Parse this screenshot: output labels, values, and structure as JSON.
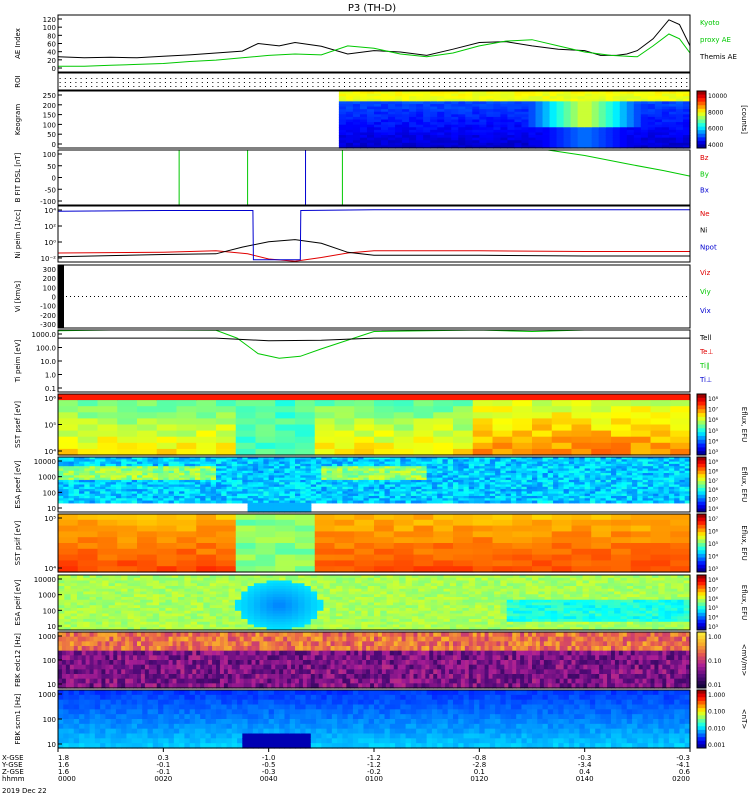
{
  "title": "P3 (TH-D)",
  "date_label": "2019 Dec 22",
  "footer": {
    "row_labels": [
      "X-GSE",
      "Y-GSE",
      "Z-GSE",
      "hhmm"
    ],
    "columns": [
      {
        "x": "1.8",
        "y": "1.6",
        "z": "1.6",
        "t": "0000"
      },
      {
        "x": "0.3",
        "y": "-0.1",
        "z": "-0.1",
        "t": "0020"
      },
      {
        "x": "-1.0",
        "y": "-0.5",
        "z": "-0.3",
        "t": "0040"
      },
      {
        "x": "-1.2",
        "y": "-1.2",
        "z": "-0.2",
        "t": "0100"
      },
      {
        "x": "-0.8",
        "y": "-2.8",
        "z": "0.1",
        "t": "0120"
      },
      {
        "x": "-0.3",
        "y": "-3.4",
        "z": "0.4",
        "t": "0140"
      },
      {
        "x": "-0.3",
        "y": "-4.1",
        "z": "0.6",
        "t": "0200"
      }
    ]
  },
  "colors": {
    "green": "#00c800",
    "red": "#e00000",
    "blue": "#0000d0",
    "black": "#000000"
  },
  "panels": [
    {
      "id": "ae",
      "ylabel": "AE Index",
      "ticks": [
        "120",
        "100",
        "80",
        "60",
        "40",
        "20",
        "0"
      ],
      "right_labels": [
        {
          "text": "Kyoto",
          "color": "green"
        },
        {
          "text": "proxy AE",
          "color": "green"
        },
        {
          "text": "Themis AE",
          "color": "black"
        }
      ]
    },
    {
      "id": "roi",
      "ylabel": "ROI",
      "ticks": [],
      "right_labels": []
    },
    {
      "id": "keogram",
      "ylabel": "Keogram",
      "ticks": [
        "250",
        "200",
        "150",
        "100",
        "50",
        "0"
      ],
      "colorbar": {
        "ticks": [
          "10000",
          "8000",
          "6000",
          "4000"
        ],
        "label": "[counts]"
      },
      "right_labels": []
    },
    {
      "id": "bfit",
      "ylabel": "B FIT DSL [nT]",
      "ticks": [
        "100",
        "50",
        "0",
        "-50",
        "-100"
      ],
      "right_labels": [
        {
          "text": "Bz",
          "color": "red"
        },
        {
          "text": "By",
          "color": "green"
        },
        {
          "text": "Bx",
          "color": "blue"
        }
      ]
    },
    {
      "id": "ni",
      "ylabel": "Ni peim [1/cc]",
      "ticks": [
        "10⁴",
        "10²",
        "10⁰",
        "10⁻²"
      ],
      "right_labels": [
        {
          "text": "Ne",
          "color": "red"
        },
        {
          "text": "Ni",
          "color": "black"
        },
        {
          "text": "Npot",
          "color": "blue"
        }
      ]
    },
    {
      "id": "vi",
      "ylabel": "Vi [km/s]",
      "ticks": [
        "300",
        "200",
        "100",
        "0",
        "-100",
        "-200",
        "-300"
      ],
      "right_labels": [
        {
          "text": "Viz",
          "color": "red"
        },
        {
          "text": "Viy",
          "color": "green"
        },
        {
          "text": "Vix",
          "color": "blue"
        }
      ]
    },
    {
      "id": "ti",
      "ylabel": "Ti peim [eV]",
      "ticks": [
        "1000.0",
        "100.0",
        "10.0",
        "1.0",
        "0.1"
      ],
      "right_labels": [
        {
          "text": "Tell",
          "color": "black"
        },
        {
          "text": "Te⊥",
          "color": "red"
        },
        {
          "text": "Ti∥",
          "color": "green"
        },
        {
          "text": "Ti⊥",
          "color": "blue"
        }
      ]
    },
    {
      "id": "sst_e",
      "ylabel": "SST psef [eV]",
      "ticks": [
        "10⁶",
        "10⁵",
        "10⁴"
      ],
      "colorbar": {
        "ticks": [
          "10⁸",
          "10⁷",
          "10⁶",
          "10⁵",
          "10⁴",
          "10³"
        ],
        "label": "Eflux, EFU"
      },
      "right_labels": []
    },
    {
      "id": "esa_e",
      "ylabel": "ESA peef [eV]",
      "ticks": [
        "10000",
        "1000",
        "100",
        "10"
      ],
      "colorbar": {
        "ticks": [
          "10⁹",
          "10⁸",
          "10⁷",
          "10⁶",
          "10⁵",
          "10⁴"
        ],
        "label": "Eflux, EFU"
      },
      "right_labels": []
    },
    {
      "id": "sst_i",
      "ylabel": "SST psif [eV]",
      "ticks": [
        "10⁵",
        "10⁴"
      ],
      "colorbar": {
        "ticks": [
          "10⁷",
          "10⁶",
          "10⁵",
          "10⁴",
          "10³"
        ],
        "label": "Eflux, EFU"
      },
      "right_labels": []
    },
    {
      "id": "esa_i",
      "ylabel": "ESA peif [eV]",
      "ticks": [
        "10000",
        "1000",
        "100",
        "10"
      ],
      "colorbar": {
        "ticks": [
          "10⁸",
          "10⁷",
          "10⁶",
          "10⁵",
          "10⁴",
          "10³"
        ],
        "label": "Eflux, EFU"
      },
      "right_labels": []
    },
    {
      "id": "fbk_e",
      "ylabel": "FBK edc12 [Hz]",
      "ticks": [
        "1000",
        "100",
        "10"
      ],
      "colorbar": {
        "ticks": [
          "1.00",
          "0.10",
          "0.01"
        ],
        "label": "<mV/m>"
      },
      "right_labels": []
    },
    {
      "id": "fbk_b",
      "ylabel": "FBK scm1 [Hz]",
      "ticks": [
        "1000",
        "100",
        "10"
      ],
      "colorbar": {
        "ticks": [
          "1.000",
          "0.100",
          "0.010",
          "0.001"
        ],
        "label": "<nT>"
      },
      "right_labels": []
    }
  ],
  "chart_data": {
    "type": "line",
    "title": "P3 (TH-D)",
    "x_label": "hhmm",
    "x_ticks": [
      "0000",
      "0020",
      "0040",
      "0100",
      "0120",
      "0140",
      "0200"
    ],
    "x_range_minutes": [
      0,
      120
    ],
    "series": [
      {
        "panel": "ae",
        "name": "Themis AE",
        "color": "black",
        "x": [
          0,
          5,
          10,
          15,
          20,
          25,
          30,
          35,
          38,
          42,
          45,
          50,
          55,
          60,
          65,
          70,
          75,
          80,
          85,
          90,
          95,
          100,
          103,
          106,
          108,
          110,
          113,
          116,
          118,
          120
        ],
        "y": [
          32,
          30,
          31,
          30,
          33,
          36,
          40,
          44,
          60,
          55,
          62,
          54,
          38,
          45,
          42,
          35,
          48,
          62,
          64,
          55,
          48,
          45,
          35,
          35,
          38,
          45,
          70,
          110,
          100,
          55
        ]
      },
      {
        "panel": "ae",
        "name": "proxy AE",
        "color": "green",
        "x": [
          0,
          5,
          10,
          15,
          20,
          25,
          30,
          35,
          40,
          45,
          50,
          55,
          60,
          65,
          70,
          75,
          80,
          85,
          90,
          95,
          100,
          105,
          110,
          113,
          116,
          118,
          120
        ],
        "y": [
          12,
          12,
          14,
          16,
          18,
          22,
          25,
          30,
          35,
          38,
          36,
          55,
          50,
          38,
          32,
          40,
          55,
          65,
          68,
          55,
          42,
          35,
          32,
          55,
          80,
          70,
          40
        ]
      },
      {
        "panel": "bfit",
        "name": "By",
        "color": "green",
        "x": [
          93,
          100,
          108,
          115,
          120
        ],
        "y": [
          100,
          80,
          50,
          25,
          5
        ]
      },
      {
        "panel": "ni",
        "name": "Ne",
        "color": "red",
        "x": [
          0,
          20,
          30,
          36,
          40,
          45,
          50,
          55,
          60,
          80,
          100,
          120
        ],
        "y": [
          -1.3,
          -1.2,
          -1.0,
          -1.4,
          -2.1,
          -2.4,
          -1.9,
          -1.3,
          -1.0,
          -1.0,
          -1.1,
          -1.1
        ]
      },
      {
        "panel": "ni",
        "name": "Ni",
        "color": "black",
        "x": [
          0,
          20,
          30,
          35,
          40,
          45,
          50,
          55,
          60,
          80,
          100,
          120
        ],
        "y": [
          -1.8,
          -1.5,
          -1.4,
          -0.5,
          0.2,
          0.5,
          0.0,
          -1.2,
          -1.6,
          -1.6,
          -1.7,
          -1.7
        ]
      },
      {
        "panel": "ni",
        "name": "Npot",
        "color": "blue",
        "x": [
          0,
          20,
          37,
          37.1,
          46,
          46.1,
          60,
          80,
          100,
          120
        ],
        "y": [
          4.3,
          4.4,
          4.4,
          -2.2,
          -2.2,
          4.4,
          4.5,
          4.5,
          4.5,
          4.5
        ]
      },
      {
        "panel": "ti",
        "name": "Ti∥",
        "color": "green",
        "x": [
          0,
          10,
          20,
          30,
          34,
          38,
          42,
          46,
          50,
          60,
          80,
          90,
          100,
          110,
          120
        ],
        "y": [
          900,
          1000,
          1000,
          950,
          300,
          30,
          15,
          20,
          60,
          800,
          1000,
          800,
          1100,
          1000,
          1100
        ]
      },
      {
        "panel": "ti",
        "name": "Tell",
        "color": "black",
        "x": [
          0,
          30,
          40,
          50,
          60,
          90,
          120
        ],
        "y": [
          300,
          300,
          200,
          220,
          300,
          300,
          300
        ]
      }
    ]
  }
}
